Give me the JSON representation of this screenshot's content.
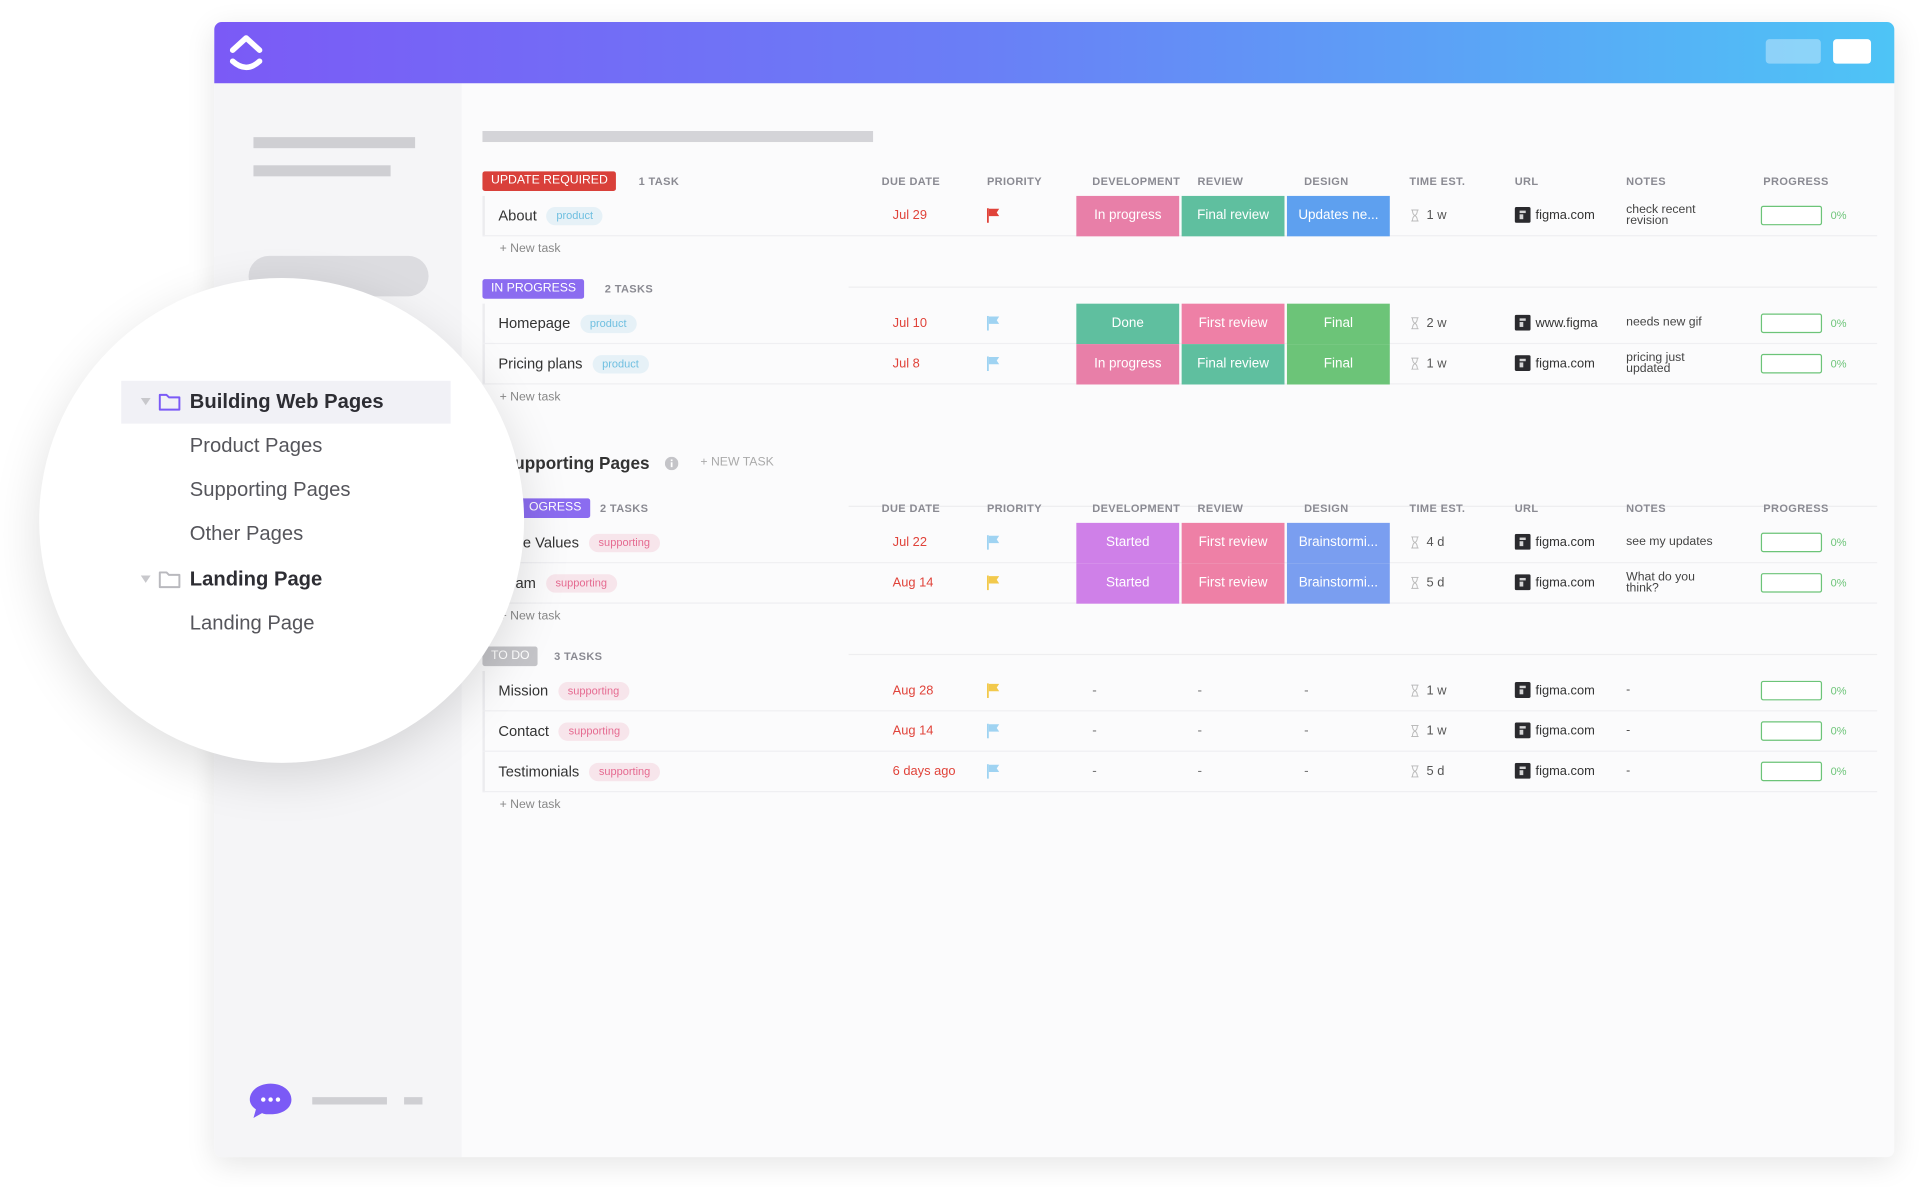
{
  "sidebar": {
    "tree": [
      {
        "label": "Building Web Pages",
        "children": [
          "Product Pages",
          "Supporting Pages",
          "Other Pages"
        ]
      },
      {
        "label": "Landing Page",
        "children": [
          "Landing Page"
        ]
      }
    ]
  },
  "columns": [
    "DUE DATE",
    "PRIORITY",
    "DEVELOPMENT",
    "REVIEW",
    "DESIGN",
    "TIME EST.",
    "URL",
    "NOTES",
    "PROGRESS"
  ],
  "lists": [
    {
      "groups": [
        {
          "status": "UPDATE REQUIRED",
          "status_color": "#d9403a",
          "count": "1 TASK",
          "new_task": "+ New task",
          "tasks": [
            {
              "name": "About",
              "tag": "product",
              "tag_color": "#6fbfe0",
              "due": "Jul 29",
              "flag": "#e0433a",
              "development": {
                "text": "In progress",
                "color": "#e87fa8"
              },
              "review": {
                "text": "Final review",
                "color": "#5fbf9f"
              },
              "design": {
                "text": "Updates ne...",
                "color": "#5ea0ef"
              },
              "time": "1 w",
              "url": "figma.com",
              "notes": "check recent revision",
              "progress": "0%"
            }
          ]
        },
        {
          "status": "IN PROGRESS",
          "status_color": "#8b6cf0",
          "count": "2 TASKS",
          "new_task": "+ New task",
          "tasks": [
            {
              "name": "Homepage",
              "tag": "product",
              "tag_color": "#6fbfe0",
              "due": "Jul 10",
              "flag": "#9fd3f2",
              "development": {
                "text": "Done",
                "color": "#5fbf9f"
              },
              "review": {
                "text": "First review",
                "color": "#ee80a6"
              },
              "design": {
                "text": "Final",
                "color": "#6cc478"
              },
              "time": "2 w",
              "url": "www.figma",
              "notes": "needs new gif",
              "progress": "0%"
            },
            {
              "name": "Pricing plans",
              "tag": "product",
              "tag_color": "#6fbfe0",
              "due": "Jul 8",
              "flag": "#9fd3f2",
              "development": {
                "text": "In progress",
                "color": "#e87fa8"
              },
              "review": {
                "text": "Final review",
                "color": "#5fbf9f"
              },
              "design": {
                "text": "Final",
                "color": "#6cc478"
              },
              "time": "1 w",
              "url": "figma.com",
              "notes": "pricing just updated",
              "progress": "0%"
            }
          ]
        }
      ]
    },
    {
      "title": "upporting Pages",
      "add": "+ NEW TASK",
      "groups": [
        {
          "status": "OGRESS",
          "status_color": "#8b6cf0",
          "count": "2 TASKS",
          "new_task": "+ New task",
          "tasks": [
            {
              "name": "e Values",
              "tag": "supporting",
              "tag_color": "#e56a90",
              "due": "Jul 22",
              "flag": "#9fd3f2",
              "development": {
                "text": "Started",
                "color": "#cf80e8"
              },
              "review": {
                "text": "First review",
                "color": "#ee80a6"
              },
              "design": {
                "text": "Brainstormi...",
                "color": "#7a9ef0"
              },
              "time": "4 d",
              "url": "figma.com",
              "notes": "see my updates",
              "progress": "0%"
            },
            {
              "name": "am",
              "tag": "supporting",
              "tag_color": "#e56a90",
              "due": "Aug 14",
              "flag": "#f2c94c",
              "development": {
                "text": "Started",
                "color": "#cf80e8"
              },
              "review": {
                "text": "First review",
                "color": "#ee80a6"
              },
              "design": {
                "text": "Brainstormi...",
                "color": "#7a9ef0"
              },
              "time": "5 d",
              "url": "figma.com",
              "notes": "What do you think?",
              "progress": "0%"
            }
          ]
        },
        {
          "status": "TO DO",
          "status_color": "#c4c4c8",
          "count": "3 TASKS",
          "new_task": "+ New task",
          "tasks": [
            {
              "name": "Mission",
              "tag": "supporting",
              "tag_color": "#e56a90",
              "due": "Aug 28",
              "flag": "#f2c94c",
              "development": {
                "text": "-"
              },
              "review": {
                "text": "-"
              },
              "design": {
                "text": "-"
              },
              "time": "1 w",
              "url": "figma.com",
              "notes": "-",
              "progress": "0%"
            },
            {
              "name": "Contact",
              "tag": "supporting",
              "tag_color": "#e56a90",
              "due": "Aug 14",
              "flag": "#9fd3f2",
              "development": {
                "text": "-"
              },
              "review": {
                "text": "-"
              },
              "design": {
                "text": "-"
              },
              "time": "1 w",
              "url": "figma.com",
              "notes": "-",
              "progress": "0%"
            },
            {
              "name": "Testimonials",
              "tag": "supporting",
              "tag_color": "#e56a90",
              "due": "6 days ago",
              "flag": "#9fd3f2",
              "development": {
                "text": "-"
              },
              "review": {
                "text": "-"
              },
              "design": {
                "text": "-"
              },
              "time": "5 d",
              "url": "figma.com",
              "notes": "-",
              "progress": "0%"
            }
          ]
        }
      ]
    }
  ]
}
